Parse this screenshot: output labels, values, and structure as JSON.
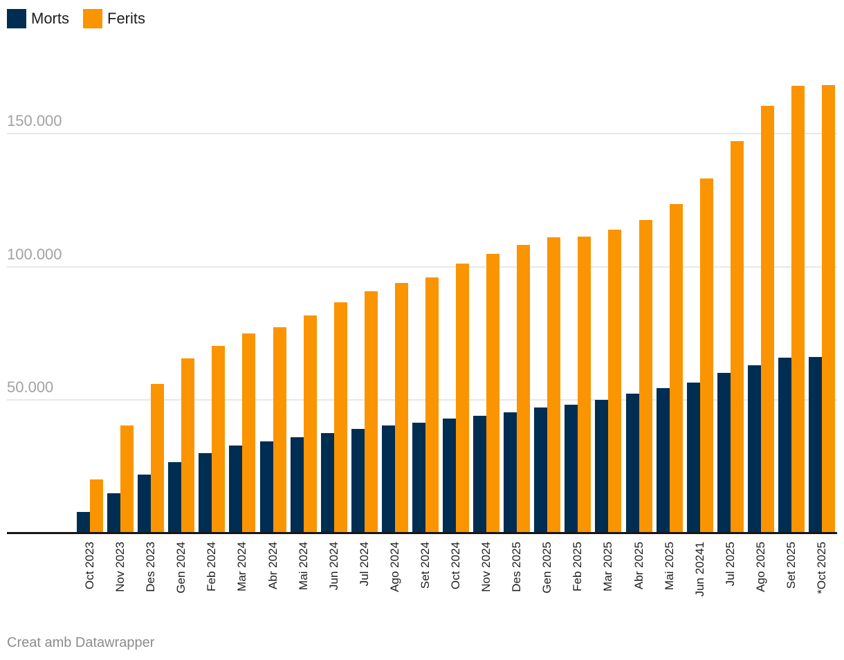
{
  "legend": {
    "items": [
      {
        "label": "Morts",
        "color": "#002d52"
      },
      {
        "label": "Ferits",
        "color": "#fa9400"
      }
    ]
  },
  "footer": {
    "credit": "Creat amb Datawrapper"
  },
  "colors": {
    "morts": "#002d52",
    "ferits": "#fa9400",
    "gridline": "#e8e8e8",
    "axis": "#161616",
    "ytick_text": "#a2a2a2",
    "xlabel_text": "#1d1d1d",
    "footer_text": "#8c8c8c",
    "background": "#ffffff"
  },
  "chart_data": {
    "type": "bar",
    "title": "",
    "xlabel": "",
    "ylabel": "",
    "grid": "horizontal",
    "legend_position": "top-left",
    "ylim": [
      0,
      200000
    ],
    "yticks": [
      {
        "value": 50000,
        "label": "50.000"
      },
      {
        "value": 100000,
        "label": "100.000"
      },
      {
        "value": 150000,
        "label": "150.000"
      }
    ],
    "categories": [
      "Oct 2023",
      "Nov 2023",
      "Des 2023",
      "Gen 2024",
      "Feb 2024",
      "Mar 2024",
      "Abr 2024",
      "Mai 2024",
      "Jun 2024",
      "Jul 2024",
      "Ago 2024",
      "Set 2024",
      "Oct 2024",
      "Nov 2024",
      "Des 2025",
      "Gen 2025",
      "Feb 2025",
      "Mar 2025",
      "Abr 2025",
      "Mai 2025",
      "Jun 20241",
      "Jul 2025",
      "Ago 2025",
      "Set 2025",
      "*Oct 2025"
    ],
    "series": [
      {
        "name": "Morts",
        "color": "#002d52",
        "values": [
          8000,
          15000,
          22100,
          26800,
          30000,
          32900,
          34400,
          36200,
          37700,
          39200,
          40500,
          41500,
          43200,
          44100,
          45500,
          47200,
          48300,
          50200,
          52400,
          54500,
          56600,
          60200,
          63100,
          66000,
          66100
        ]
      },
      {
        "name": "Ferits",
        "color": "#fa9400",
        "values": [
          20200,
          40600,
          56100,
          65700,
          70300,
          75000,
          77400,
          81700,
          86800,
          90900,
          93900,
          96100,
          101200,
          104800,
          108100,
          111100,
          111400,
          113800,
          117600,
          123500,
          133200,
          147100,
          160300,
          167900,
          168200
        ]
      }
    ]
  }
}
